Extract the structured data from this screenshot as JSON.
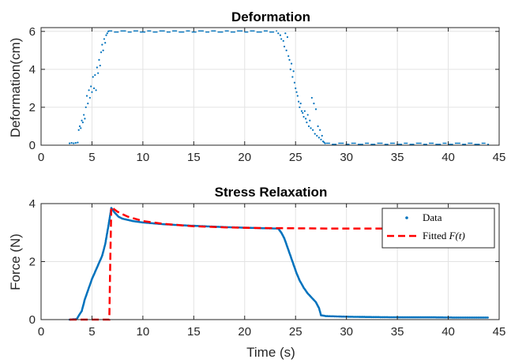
{
  "chart_data": [
    {
      "type": "scatter",
      "title": "Deformation",
      "xlabel": "",
      "ylabel": "Deformation(cm)",
      "xlim": [
        0,
        45
      ],
      "ylim": [
        0,
        6.2
      ],
      "xticks": [
        0,
        5,
        10,
        15,
        20,
        25,
        30,
        35,
        40,
        45
      ],
      "yticks": [
        0,
        2,
        4,
        6
      ],
      "grid": true,
      "series": [
        {
          "marker": "dot",
          "color": "#0072BD",
          "points": [
            [
              2.8,
              0.1
            ],
            [
              3.0,
              0.12
            ],
            [
              3.2,
              0.1
            ],
            [
              3.4,
              0.12
            ],
            [
              3.6,
              0.14
            ],
            [
              3.7,
              0.8
            ],
            [
              3.8,
              1.0
            ],
            [
              3.9,
              0.9
            ],
            [
              4.0,
              1.3
            ],
            [
              4.1,
              1.2
            ],
            [
              4.2,
              1.6
            ],
            [
              4.3,
              1.4
            ],
            [
              4.4,
              2.0
            ],
            [
              4.5,
              2.6
            ],
            [
              4.6,
              2.2
            ],
            [
              4.7,
              2.9
            ],
            [
              4.8,
              2.5
            ],
            [
              4.9,
              3.1
            ],
            [
              5.0,
              2.8
            ],
            [
              5.1,
              3.6
            ],
            [
              5.2,
              3.0
            ],
            [
              5.3,
              3.7
            ],
            [
              5.4,
              2.9
            ],
            [
              5.5,
              4.1
            ],
            [
              5.6,
              3.8
            ],
            [
              5.7,
              4.5
            ],
            [
              5.8,
              4.2
            ],
            [
              5.9,
              4.9
            ],
            [
              6.0,
              5.3
            ],
            [
              6.1,
              5.0
            ],
            [
              6.2,
              5.6
            ],
            [
              6.3,
              5.4
            ],
            [
              6.4,
              5.8
            ],
            [
              6.5,
              5.9
            ],
            [
              6.6,
              6.0
            ],
            [
              23.3,
              5.9
            ],
            [
              23.5,
              5.8
            ],
            [
              23.6,
              5.6
            ],
            [
              23.8,
              5.5
            ],
            [
              23.9,
              5.2
            ],
            [
              24.0,
              5.9
            ],
            [
              24.1,
              5.0
            ],
            [
              24.2,
              5.7
            ],
            [
              24.3,
              4.7
            ],
            [
              24.4,
              4.5
            ],
            [
              24.5,
              4.0
            ],
            [
              24.6,
              4.3
            ],
            [
              24.7,
              3.6
            ],
            [
              24.8,
              3.9
            ],
            [
              24.9,
              3.3
            ],
            [
              25.0,
              3.0
            ],
            [
              25.1,
              2.8
            ],
            [
              25.2,
              2.6
            ],
            [
              25.3,
              2.3
            ],
            [
              25.4,
              2.0
            ],
            [
              25.5,
              2.2
            ],
            [
              25.6,
              1.8
            ],
            [
              25.7,
              1.7
            ],
            [
              25.8,
              1.5
            ],
            [
              25.9,
              1.8
            ],
            [
              26.0,
              1.4
            ],
            [
              26.1,
              1.2
            ],
            [
              26.2,
              1.6
            ],
            [
              26.3,
              1.0
            ],
            [
              26.4,
              1.3
            ],
            [
              26.5,
              0.9
            ],
            [
              26.6,
              2.5
            ],
            [
              26.7,
              0.8
            ],
            [
              26.8,
              2.2
            ],
            [
              26.9,
              0.6
            ],
            [
              27.0,
              1.9
            ],
            [
              27.1,
              0.5
            ],
            [
              27.2,
              1.0
            ],
            [
              27.3,
              0.4
            ],
            [
              27.4,
              0.8
            ],
            [
              27.5,
              0.3
            ],
            [
              27.6,
              0.5
            ],
            [
              27.7,
              0.2
            ],
            [
              27.8,
              0.15
            ],
            [
              27.9,
              0.1
            ]
          ],
          "plateaus": [
            {
              "x_start": 6.6,
              "x_end": 23.2,
              "y": 6.0
            },
            {
              "x_start": 28.0,
              "x_end": 44.0,
              "y": 0.08
            }
          ]
        }
      ]
    },
    {
      "type": "line",
      "title": "Stress Relaxation",
      "xlabel": "Time (s)",
      "ylabel": "Force (N)",
      "xlim": [
        0,
        45
      ],
      "ylim": [
        0,
        4
      ],
      "xticks": [
        0,
        5,
        10,
        15,
        20,
        25,
        30,
        35,
        40,
        45
      ],
      "yticks": [
        0,
        2,
        4
      ],
      "grid": true,
      "legend_position": "top-right",
      "series": [
        {
          "name": "Data",
          "style": "dots",
          "color": "#0072BD",
          "points": [
            [
              2.8,
              0.0
            ],
            [
              3.5,
              0.02
            ],
            [
              4.0,
              0.3
            ],
            [
              4.3,
              0.7
            ],
            [
              4.6,
              1.0
            ],
            [
              5.0,
              1.4
            ],
            [
              5.5,
              1.8
            ],
            [
              6.0,
              2.2
            ],
            [
              6.3,
              2.6
            ],
            [
              6.6,
              3.2
            ],
            [
              6.9,
              3.85
            ],
            [
              7.2,
              3.7
            ],
            [
              7.6,
              3.55
            ],
            [
              8.0,
              3.48
            ],
            [
              9.0,
              3.4
            ],
            [
              10.0,
              3.35
            ],
            [
              12.0,
              3.29
            ],
            [
              14.0,
              3.25
            ],
            [
              16.0,
              3.22
            ],
            [
              18.0,
              3.19
            ],
            [
              20.0,
              3.17
            ],
            [
              22.0,
              3.15
            ],
            [
              23.3,
              3.14
            ],
            [
              23.6,
              3.0
            ],
            [
              23.9,
              2.8
            ],
            [
              24.2,
              2.5
            ],
            [
              24.5,
              2.2
            ],
            [
              24.8,
              1.9
            ],
            [
              25.1,
              1.6
            ],
            [
              25.4,
              1.35
            ],
            [
              25.8,
              1.1
            ],
            [
              26.2,
              0.9
            ],
            [
              26.6,
              0.75
            ],
            [
              27.0,
              0.6
            ],
            [
              27.3,
              0.4
            ],
            [
              27.5,
              0.15
            ],
            [
              28.0,
              0.12
            ],
            [
              30.0,
              0.1
            ],
            [
              32.0,
              0.09
            ],
            [
              35.0,
              0.08
            ],
            [
              38.0,
              0.08
            ],
            [
              41.0,
              0.07
            ],
            [
              44.0,
              0.07
            ]
          ]
        },
        {
          "name": "Fitted F(t)",
          "name_plain": "Fitted ",
          "name_math": "F(t)",
          "style": "dashed",
          "color": "#FF0000",
          "points": [
            [
              2.8,
              0.0
            ],
            [
              6.7,
              0.0
            ],
            [
              6.8,
              2.0
            ],
            [
              6.9,
              3.88
            ],
            [
              7.5,
              3.72
            ],
            [
              8.5,
              3.55
            ],
            [
              10.0,
              3.4
            ],
            [
              12.0,
              3.3
            ],
            [
              15.0,
              3.22
            ],
            [
              18.0,
              3.18
            ],
            [
              21.0,
              3.16
            ],
            [
              24.0,
              3.15
            ],
            [
              28.0,
              3.14
            ],
            [
              35.0,
              3.14
            ],
            [
              44.0,
              3.14
            ]
          ]
        }
      ]
    }
  ]
}
